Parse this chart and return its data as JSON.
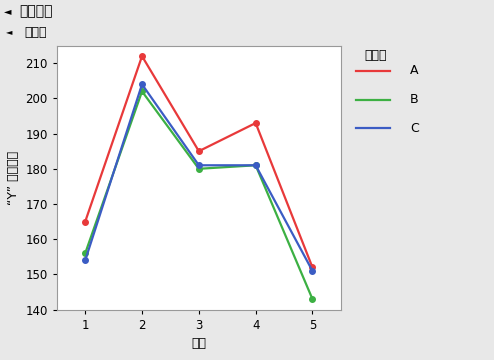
{
  "x": [
    1,
    2,
    3,
    4,
    5
  ],
  "series": {
    "A": [
      165,
      212,
      185,
      193,
      152
    ],
    "B": [
      156,
      202,
      180,
      181,
      143
    ],
    "C": [
      154,
      204,
      181,
      181,
      151
    ]
  },
  "colors": {
    "A": "#E8393A",
    "B": "#3CB043",
    "C": "#3B5CC4"
  },
  "xlabel": "部件",
  "ylabel": "“Y” 的平均值",
  "legend_title": "操作员",
  "title1": "平行性图",
  "title2": "操作员",
  "ylim": [
    140,
    215
  ],
  "yticks": [
    140,
    150,
    160,
    170,
    180,
    190,
    200,
    210
  ],
  "xticks": [
    1,
    2,
    3,
    4,
    5
  ],
  "outer_bg": "#E8E8E8",
  "header1_bg": "#D0D0D0",
  "plot_bg": "#FFFFFF",
  "marker": "o",
  "marker_size": 4,
  "linewidth": 1.6
}
